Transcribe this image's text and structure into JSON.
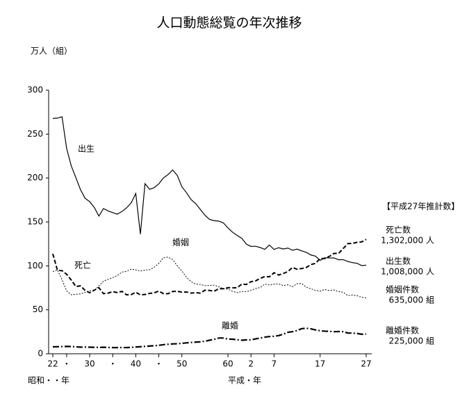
{
  "chart_data": {
    "type": "line",
    "title": "人口動態総覧の年次推移",
    "y_label": "万人（組）",
    "era_labels": [
      "昭和・・年",
      "平成・年"
    ],
    "x": [
      1947,
      1948,
      1949,
      1950,
      1951,
      1952,
      1953,
      1954,
      1955,
      1956,
      1957,
      1958,
      1959,
      1960,
      1961,
      1962,
      1963,
      1964,
      1965,
      1966,
      1967,
      1968,
      1969,
      1970,
      1971,
      1972,
      1973,
      1974,
      1975,
      1976,
      1977,
      1978,
      1979,
      1980,
      1981,
      1982,
      1983,
      1984,
      1985,
      1986,
      1987,
      1988,
      1989,
      1990,
      1991,
      1992,
      1993,
      1994,
      1995,
      1996,
      1997,
      1998,
      1999,
      2000,
      2001,
      2002,
      2003,
      2004,
      2005,
      2006,
      2007,
      2008,
      2009,
      2010,
      2011,
      2012,
      2013,
      2014,
      2015
    ],
    "xlim": [
      1947,
      2015
    ],
    "xticks": [
      {
        "value": 1947,
        "label": "22"
      },
      {
        "value": 1950,
        "label": "・"
      },
      {
        "value": 1955,
        "label": "30"
      },
      {
        "value": 1960,
        "label": "・"
      },
      {
        "value": 1965,
        "label": "40"
      },
      {
        "value": 1970,
        "label": "・"
      },
      {
        "value": 1975,
        "label": "50"
      },
      {
        "value": 1985,
        "label": "60"
      },
      {
        "value": 1990,
        "label": "2"
      },
      {
        "value": 1995,
        "label": "7"
      },
      {
        "value": 2005,
        "label": "17"
      },
      {
        "value": 2015,
        "label": "27"
      }
    ],
    "ylim": [
      0,
      300
    ],
    "yticks": [
      0,
      50,
      100,
      150,
      200,
      250,
      300
    ],
    "series": [
      {
        "name": "出生",
        "color": "#000",
        "dash": "none",
        "width": 1.2,
        "values": [
          267.9,
          268.2,
          269.7,
          233.8,
          213.8,
          200.5,
          186.8,
          177.0,
          173.1,
          166.5,
          156.7,
          165.3,
          162.6,
          160.6,
          158.9,
          161.9,
          166.0,
          171.7,
          182.4,
          136.1,
          193.6,
          187.2,
          189.0,
          193.4,
          200.1,
          203.9,
          209.2,
          203.0,
          190.1,
          183.3,
          175.5,
          170.9,
          164.3,
          157.7,
          152.9,
          151.5,
          150.9,
          149.0,
          143.2,
          138.3,
          134.7,
          131.4,
          124.7,
          122.2,
          122.3,
          120.9,
          118.8,
          123.8,
          118.7,
          120.7,
          119.2,
          120.3,
          117.8,
          119.1,
          117.1,
          115.4,
          112.4,
          111.1,
          106.3,
          109.3,
          109.0,
          109.1,
          107.0,
          107.1,
          105.1,
          103.7,
          103.0,
          100.4,
          100.8
        ]
      },
      {
        "name": "死亡",
        "color": "#000",
        "dash": "6,3",
        "width": 2,
        "values": [
          113.8,
          95.1,
          94.5,
          90.5,
          83.9,
          76.5,
          77.3,
          72.1,
          69.4,
          72.4,
          75.2,
          68.4,
          69.0,
          70.7,
          69.6,
          71.0,
          67.1,
          67.3,
          70.0,
          67.0,
          67.5,
          68.7,
          69.4,
          71.3,
          68.5,
          68.3,
          70.9,
          71.1,
          70.2,
          70.3,
          69.0,
          69.6,
          69.0,
          72.3,
          72.0,
          71.2,
          74.0,
          74.0,
          75.2,
          75.1,
          75.1,
          79.3,
          78.9,
          82.0,
          83.0,
          85.7,
          87.9,
          87.6,
          92.2,
          89.6,
          91.3,
          93.6,
          98.2,
          96.2,
          97.0,
          98.2,
          101.5,
          102.9,
          108.4,
          108.4,
          110.8,
          114.2,
          114.2,
          119.7,
          125.3,
          125.6,
          126.8,
          127.3,
          130.2
        ]
      },
      {
        "name": "婚姻",
        "color": "#000",
        "dash": "2,2",
        "width": 1,
        "values": [
          93.4,
          95.4,
          84.3,
          71.5,
          67.1,
          67.7,
          68.2,
          69.8,
          71.5,
          71.5,
          77.3,
          82.6,
          84.7,
          86.6,
          89.0,
          92.9,
          93.8,
          96.3,
          95.5,
          94.1,
          95.3,
          95.6,
          98.4,
          102.9,
          109.2,
          110.0,
          107.2,
          100.1,
          94.2,
          87.1,
          82.1,
          79.3,
          78.9,
          77.5,
          77.7,
          78.1,
          76.3,
          73.9,
          73.6,
          71.0,
          69.6,
          70.8,
          70.8,
          72.2,
          74.2,
          75.4,
          79.3,
          78.2,
          79.2,
          79.5,
          77.6,
          78.5,
          76.2,
          79.8,
          80.0,
          75.7,
          74.0,
          72.0,
          71.4,
          73.1,
          72.0,
          72.6,
          70.8,
          70.0,
          66.2,
          66.9,
          66.1,
          64.4,
          63.5
        ]
      },
      {
        "name": "離婚",
        "color": "#000",
        "dash": "9,3,2,3",
        "width": 2.2,
        "values": [
          7.9,
          8.0,
          8.2,
          8.4,
          8.2,
          7.9,
          7.5,
          7.6,
          7.5,
          7.3,
          7.2,
          7.4,
          7.2,
          7.0,
          7.0,
          7.1,
          7.0,
          7.3,
          7.7,
          8.0,
          8.4,
          8.8,
          9.1,
          9.6,
          10.3,
          10.8,
          11.2,
          11.4,
          11.9,
          12.4,
          12.9,
          13.2,
          13.5,
          14.2,
          15.4,
          16.4,
          17.9,
          17.9,
          16.7,
          16.6,
          15.9,
          15.4,
          15.8,
          15.8,
          16.9,
          17.9,
          18.9,
          19.6,
          19.9,
          20.7,
          22.3,
          24.4,
          25.1,
          26.4,
          28.6,
          29.0,
          28.4,
          27.1,
          26.2,
          25.7,
          25.5,
          25.1,
          25.3,
          25.1,
          23.6,
          23.5,
          23.1,
          22.2,
          22.5
        ]
      }
    ],
    "legend_title": "【平成27年推計数】",
    "legend": [
      {
        "label": "死亡数",
        "value": "1,302,000 人"
      },
      {
        "label": "出生数",
        "value": "1,008,000 人"
      },
      {
        "label": "婚姻件数",
        "value": "635,000 組"
      },
      {
        "label": "離婚件数",
        "value": "225,000 組"
      }
    ]
  }
}
